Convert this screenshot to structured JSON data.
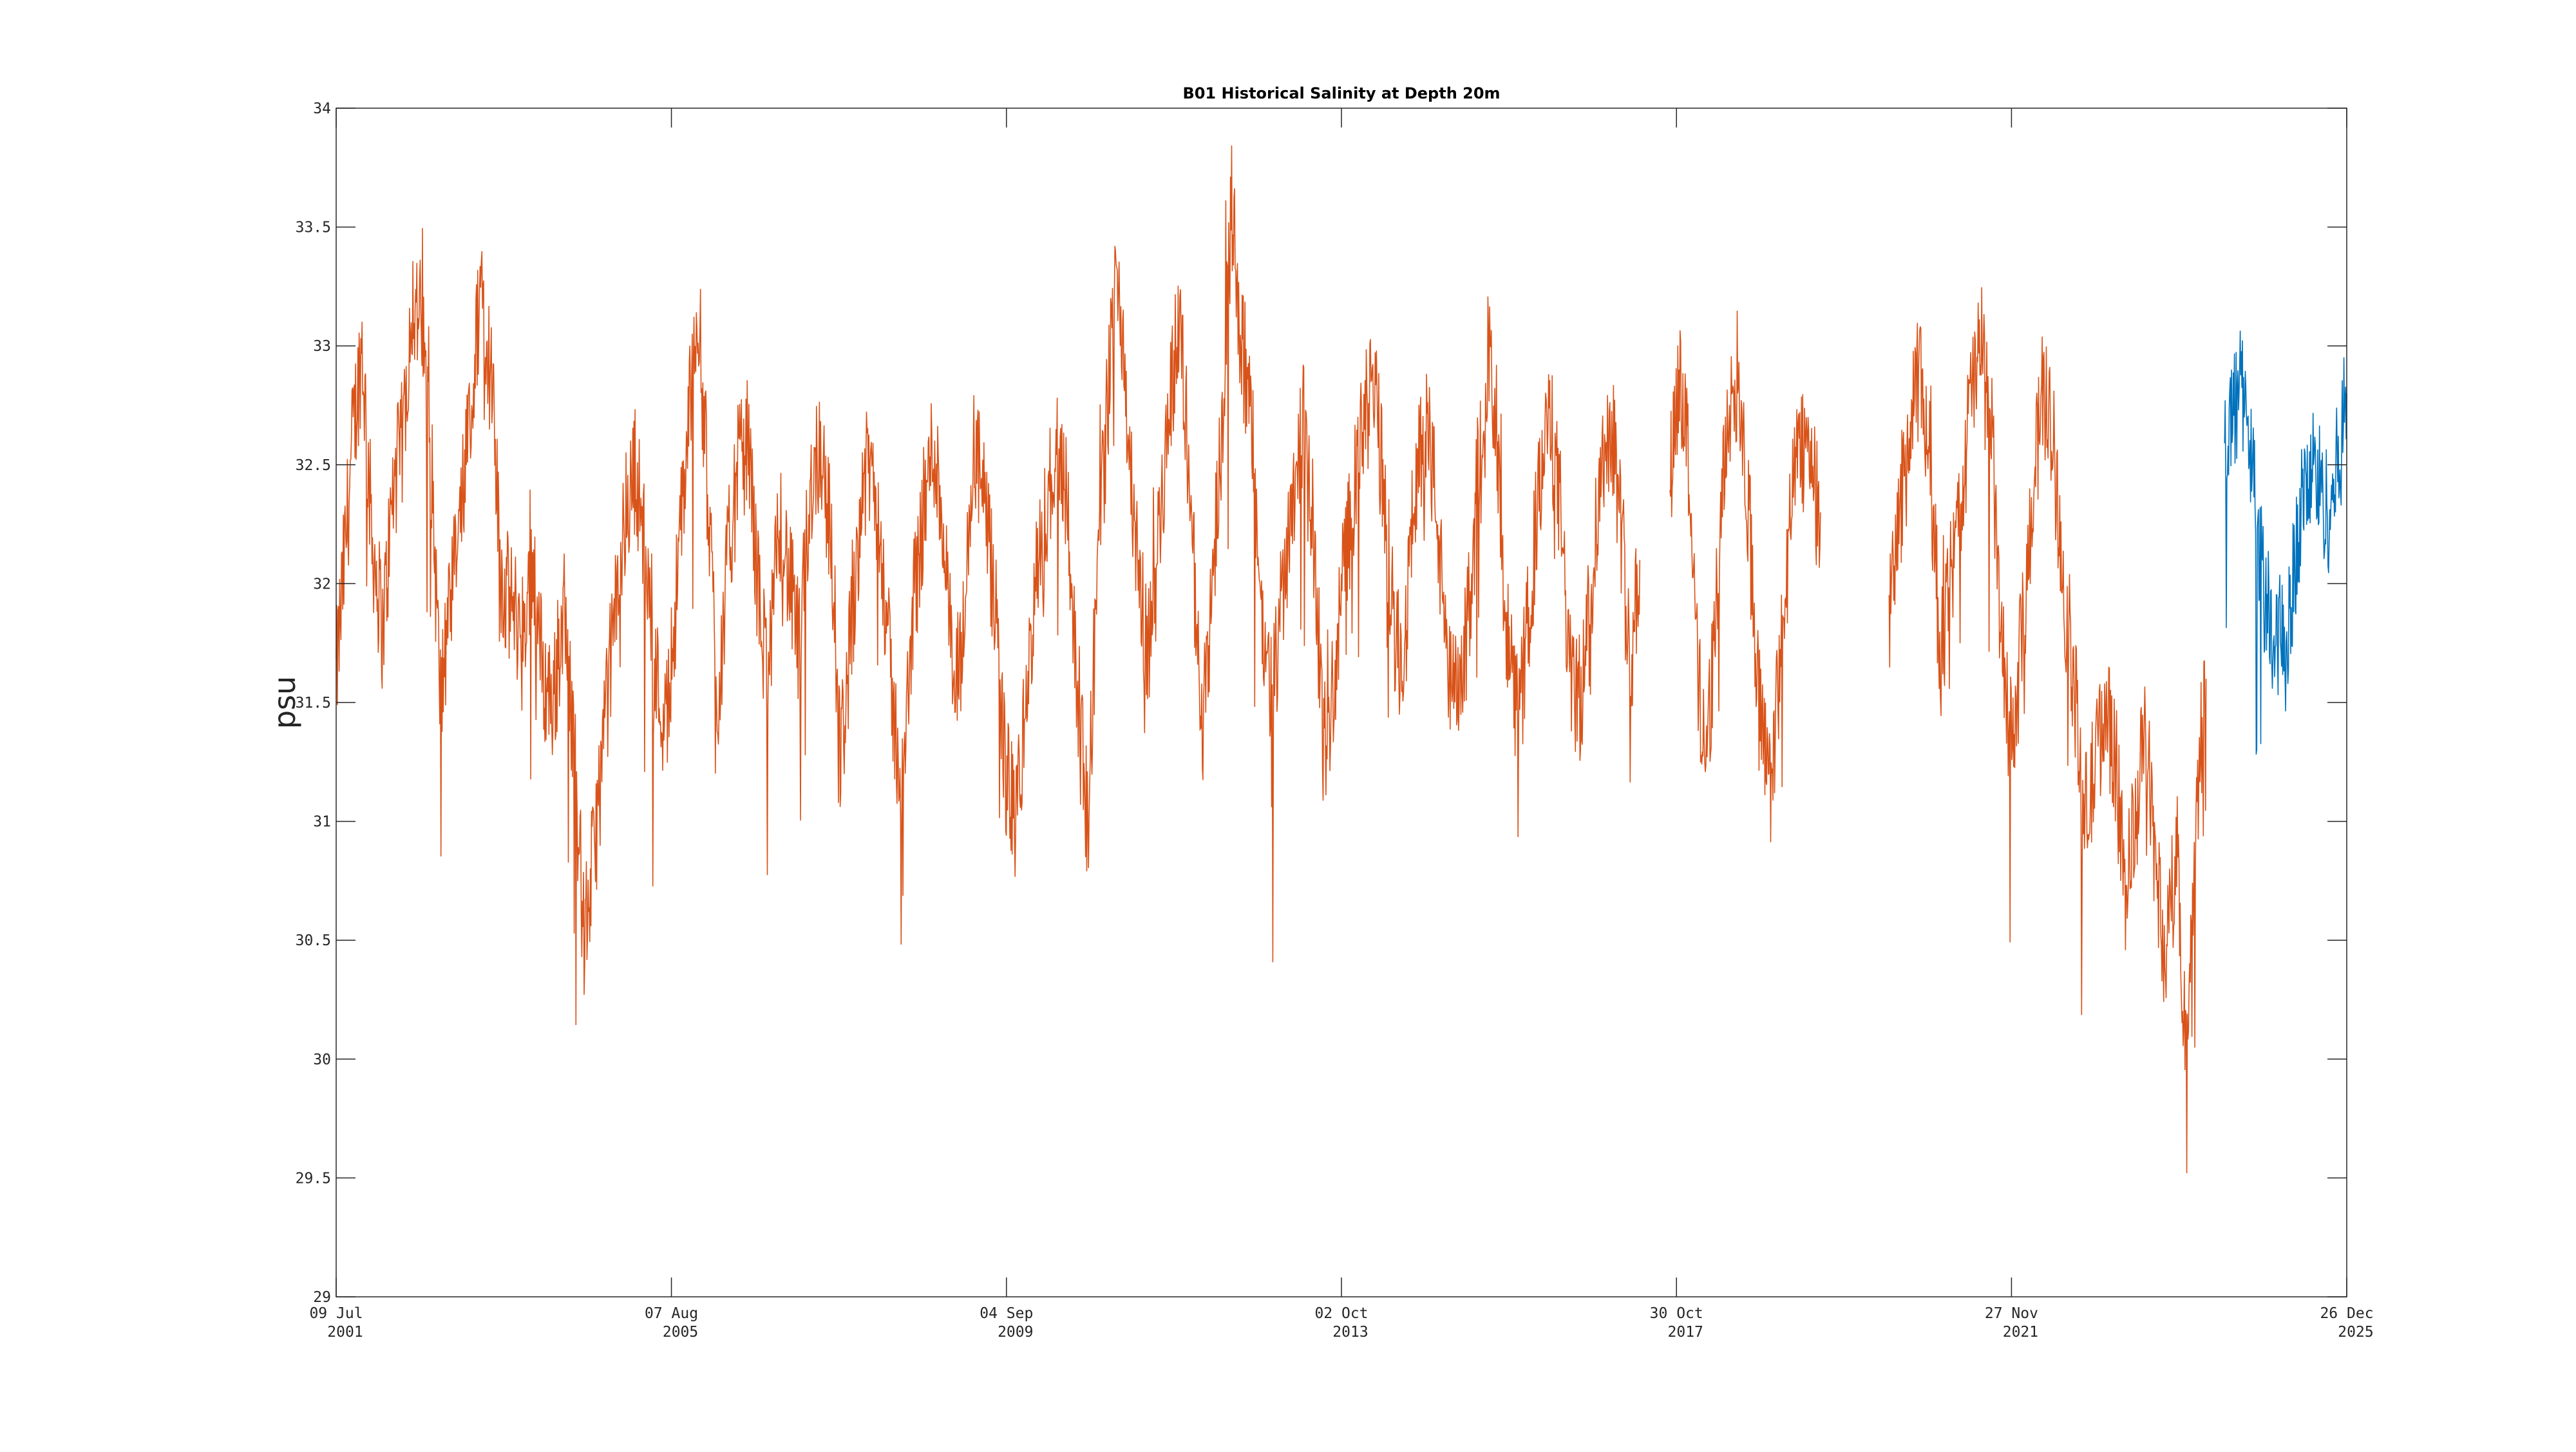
{
  "chart_data": {
    "type": "line",
    "title": "B01 Historical Salinity at Depth 20m",
    "xlabel": "",
    "ylabel": "psu",
    "ylim": [
      29,
      34
    ],
    "yticks": [
      29,
      29.5,
      30,
      30.5,
      31,
      31.5,
      32,
      32.5,
      33,
      33.5,
      34
    ],
    "xlim": [
      "2001-07-09",
      "2025-12-26"
    ],
    "xticks": [
      {
        "date": "2001-07-09",
        "line1": "09 Jul",
        "line2": "2001"
      },
      {
        "date": "2005-08-07",
        "line1": "07 Aug",
        "line2": "2005"
      },
      {
        "date": "2009-09-04",
        "line1": "04 Sep",
        "line2": "2009"
      },
      {
        "date": "2013-10-02",
        "line1": "02 Oct",
        "line2": "2013"
      },
      {
        "date": "2017-10-30",
        "line1": "30 Oct",
        "line2": "2017"
      },
      {
        "date": "2021-11-27",
        "line1": "27 Nov",
        "line2": "2021"
      },
      {
        "date": "2025-12-26",
        "line1": "26 Dec",
        "line2": "2025"
      }
    ],
    "grid": false,
    "series": [
      {
        "color": "#D95319",
        "segments": [
          {
            "x": [
              "2001-07-09",
              "2001-08-15",
              "2001-09-20",
              "2001-11-01",
              "2001-12-15",
              "2002-02-01",
              "2002-03-20",
              "2002-05-01",
              "2002-06-10",
              "2002-07-20",
              "2002-09-01",
              "2002-10-15",
              "2002-12-01",
              "2003-01-15",
              "2003-03-01",
              "2003-04-15",
              "2003-06-01",
              "2003-07-15",
              "2003-09-01",
              "2003-10-15",
              "2003-12-01",
              "2004-01-15",
              "2004-03-01",
              "2004-04-15",
              "2004-06-01",
              "2004-07-15",
              "2004-09-01",
              "2004-10-15",
              "2004-12-01",
              "2005-01-20",
              "2005-03-01",
              "2005-04-15",
              "2005-06-01",
              "2005-07-15",
              "2005-09-01",
              "2005-10-15",
              "2005-12-01",
              "2006-01-15",
              "2006-03-01",
              "2006-04-15",
              "2006-06-01",
              "2006-07-15",
              "2006-09-01",
              "2006-10-15",
              "2006-12-01",
              "2007-01-15",
              "2007-03-01",
              "2007-04-15",
              "2007-06-01",
              "2007-07-15",
              "2007-09-01",
              "2007-10-15",
              "2007-12-01",
              "2008-01-15",
              "2008-03-01",
              "2008-04-15",
              "2008-06-01",
              "2008-07-15",
              "2008-09-01",
              "2008-10-15",
              "2008-12-01",
              "2009-01-15",
              "2009-03-01",
              "2009-04-15",
              "2009-06-01",
              "2009-07-15",
              "2009-09-01",
              "2009-10-15",
              "2009-12-01",
              "2010-01-15",
              "2010-03-01",
              "2010-04-15",
              "2010-06-01",
              "2010-07-15",
              "2010-09-01",
              "2010-10-15",
              "2010-12-01",
              "2011-01-15",
              "2011-03-01",
              "2011-04-15",
              "2011-06-01",
              "2011-07-15",
              "2011-09-01",
              "2011-10-15",
              "2011-12-01",
              "2012-01-15",
              "2012-03-01",
              "2012-04-15",
              "2012-06-01",
              "2012-07-15",
              "2012-09-01",
              "2012-10-15",
              "2012-12-01",
              "2013-01-15",
              "2013-03-01",
              "2013-04-15",
              "2013-06-01",
              "2013-07-15",
              "2013-09-01",
              "2013-10-15",
              "2013-12-01",
              "2014-01-15",
              "2014-03-01",
              "2014-04-15",
              "2014-06-01",
              "2014-07-15",
              "2014-09-01",
              "2014-10-15",
              "2014-12-01",
              "2015-01-15",
              "2015-03-01",
              "2015-04-15",
              "2015-06-01",
              "2015-07-15",
              "2015-09-01",
              "2015-10-15",
              "2015-12-01",
              "2016-01-15",
              "2016-03-01",
              "2016-04-15",
              "2016-06-01",
              "2016-07-15",
              "2016-09-01",
              "2016-10-15",
              "2016-12-01",
              "2017-01-15",
              "2017-03-01",
              "2017-04-15",
              "2017-05-20"
            ],
            "y": [
              31.6,
              32.1,
              32.6,
              33.0,
              32.2,
              31.8,
              32.4,
              32.6,
              33.2,
              33.1,
              32.6,
              31.5,
              31.9,
              32.3,
              32.7,
              33.3,
              32.8,
              32.0,
              31.9,
              31.8,
              32.1,
              31.6,
              31.5,
              31.9,
              31.3,
              30.5,
              30.9,
              31.4,
              31.9,
              32.3,
              32.5,
              32.1,
              31.6,
              31.4,
              32.0,
              32.6,
              33.2,
              32.4,
              31.5,
              32.1,
              32.5,
              32.6,
              31.9,
              31.6,
              32.3,
              32.0,
              31.7,
              32.4,
              32.6,
              32.2,
              31.3,
              31.8,
              32.4,
              32.5,
              32.1,
              31.5,
              31.1,
              31.9,
              32.3,
              32.6,
              32.2,
              31.5,
              31.8,
              32.6,
              32.3,
              31.9,
              31.2,
              31.0,
              31.5,
              32.0,
              32.3,
              32.6,
              32.4,
              31.5,
              31.0,
              32.1,
              32.8,
              33.4,
              32.6,
              32.0,
              31.7,
              32.2,
              32.8,
              33.1,
              32.4,
              31.4,
              31.9,
              32.6,
              33.6,
              33.0,
              32.6,
              31.8,
              31.5,
              32.0,
              32.4,
              32.7,
              32.2,
              31.3,
              31.6,
              32.1,
              32.4,
              32.7,
              32.8,
              32.3,
              31.7,
              31.8,
              32.5,
              32.7,
              32.3,
              31.6,
              31.5,
              31.8,
              32.5,
              33.0,
              32.4,
              31.7,
              31.4,
              31.9,
              32.4,
              32.7,
              32.3,
              31.6,
              31.5,
              32.0,
              32.5,
              32.7,
              32.2,
              31.7,
              32.1
            ]
          },
          {
            "x": [
              "2017-10-01",
              "2017-11-10",
              "2017-12-20",
              "2018-02-01",
              "2018-03-15",
              "2018-05-01",
              "2018-06-15",
              "2018-08-01",
              "2018-09-15",
              "2018-11-01",
              "2018-12-15",
              "2019-02-01",
              "2019-03-15",
              "2019-05-01",
              "2019-06-15",
              "2019-08-01"
            ],
            "y": [
              32.4,
              32.9,
              32.6,
              31.6,
              31.3,
              32.0,
              32.7,
              32.9,
              32.3,
              31.5,
              31.1,
              31.6,
              32.2,
              32.6,
              32.6,
              32.3
            ]
          },
          {
            "x": [
              "2020-06-01",
              "2020-07-15",
              "2020-09-01",
              "2020-10-15",
              "2020-12-01",
              "2021-01-15",
              "2021-03-01",
              "2021-04-15",
              "2021-06-01",
              "2021-07-15",
              "2021-09-01",
              "2021-10-15",
              "2021-12-01",
              "2022-01-15",
              "2022-03-01",
              "2022-04-15",
              "2022-06-01",
              "2022-07-15",
              "2022-09-01",
              "2022-10-15",
              "2022-12-01",
              "2023-01-15",
              "2023-03-01",
              "2023-04-15",
              "2023-06-01",
              "2023-07-15",
              "2023-09-01",
              "2023-10-15",
              "2023-12-01",
              "2024-01-15",
              "2024-03-01",
              "2024-04-10"
            ],
            "y": [
              31.8,
              32.3,
              32.6,
              32.9,
              32.5,
              31.7,
              32.0,
              32.3,
              32.8,
              33.0,
              32.6,
              31.7,
              31.3,
              31.8,
              32.4,
              32.8,
              32.6,
              32.0,
              31.6,
              31.0,
              31.2,
              31.5,
              31.3,
              30.7,
              31.0,
              31.4,
              30.8,
              30.4,
              30.9,
              30.0,
              31.1,
              31.6
            ]
          }
        ]
      },
      {
        "color": "#0072BD",
        "segments": [
          {
            "x": [
              "2024-07-01",
              "2024-08-01",
              "2024-09-01",
              "2024-10-01",
              "2024-11-01",
              "2024-12-01",
              "2025-01-01",
              "2025-02-01",
              "2025-03-01",
              "2025-04-01",
              "2025-05-01",
              "2025-06-01",
              "2025-07-01",
              "2025-08-01",
              "2025-09-01",
              "2025-10-01",
              "2025-11-01",
              "2025-12-01",
              "2025-12-26"
            ],
            "y": [
              32.6,
              32.7,
              32.8,
              32.8,
              32.5,
              32.2,
              31.9,
              31.7,
              31.8,
              31.7,
              32.0,
              32.3,
              32.4,
              32.5,
              32.4,
              32.3,
              32.4,
              32.6,
              32.8
            ]
          }
        ]
      }
    ]
  }
}
